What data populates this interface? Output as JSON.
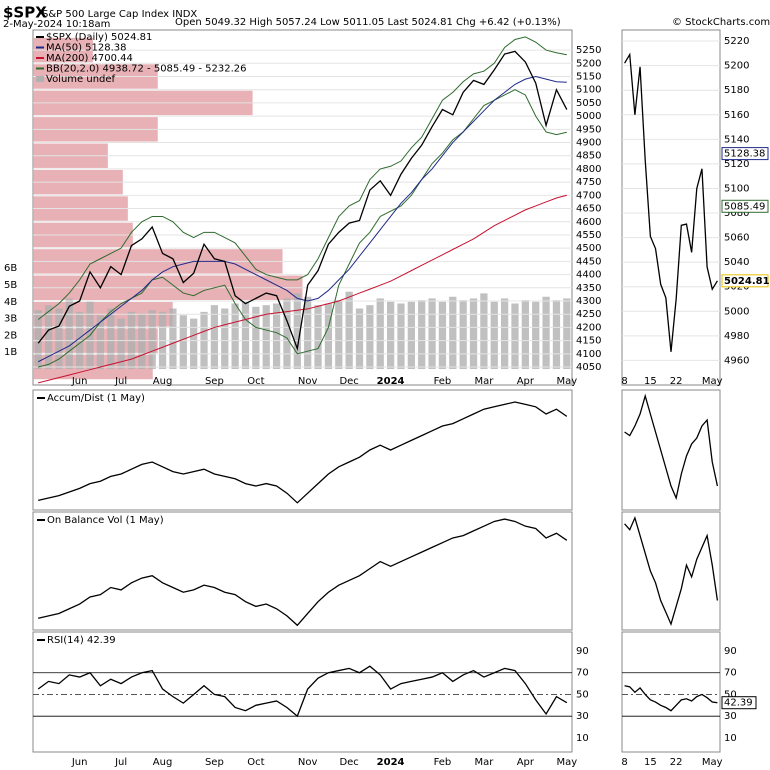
{
  "chart_data": [
    {
      "type": "line",
      "title": "$SPX",
      "subtitle": "S&P 500 Large Cap Index INDX",
      "date": "2-May-2024 10:18am",
      "quote": "Open 5049.32 High 5057.24 Low 5011.05 Last 5024.81 Chg +6.42 (+0.13%)",
      "source": "© StockCharts.com",
      "categories": [
        null,
        null,
        null,
        null,
        "Jun",
        null,
        null,
        null,
        "Jul",
        null,
        null,
        null,
        "Aug",
        null,
        null,
        null,
        null,
        "Sep",
        null,
        null,
        null,
        "Oct",
        null,
        null,
        null,
        null,
        "Nov",
        null,
        null,
        null,
        "Dec",
        null,
        null,
        null,
        "2024",
        null,
        null,
        null,
        null,
        "Feb",
        null,
        null,
        null,
        "Mar",
        null,
        null,
        null,
        "Apr",
        null,
        null,
        null,
        "May"
      ],
      "series": [
        {
          "name": "$SPX (Daily) 5024.81",
          "color": "#000000",
          "values": [
            4140,
            4190,
            4205,
            4280,
            4300,
            4410,
            4350,
            4430,
            4400,
            4510,
            4535,
            4580,
            4480,
            4460,
            4370,
            4405,
            4515,
            4460,
            4450,
            4320,
            4290,
            4310,
            4330,
            4320,
            4225,
            4120,
            4360,
            4415,
            4515,
            4560,
            4595,
            4605,
            4720,
            4755,
            4700,
            4780,
            4840,
            4890,
            4960,
            5025,
            5005,
            5090,
            5135,
            5120,
            5175,
            5235,
            5245,
            5205,
            5125,
            4965,
            5100,
            5024.81
          ]
        },
        {
          "name": "MA(50) 5128.38",
          "color": "#1f2a8a",
          "values": [
            4070,
            4090,
            4110,
            4130,
            4160,
            4190,
            4220,
            4250,
            4280,
            4310,
            4340,
            4380,
            4410,
            4430,
            4440,
            4450,
            4450,
            4450,
            4450,
            4440,
            4420,
            4400,
            4380,
            4360,
            4340,
            4310,
            4300,
            4310,
            4340,
            4380,
            4420,
            4470,
            4520,
            4570,
            4620,
            4670,
            4710,
            4760,
            4800,
            4850,
            4900,
            4940,
            4980,
            5020,
            5060,
            5090,
            5120,
            5140,
            5150,
            5140,
            5130,
            5128.38
          ]
        },
        {
          "name": "MA(200) 4700.44",
          "color": "#c8102e",
          "values": [
            3990,
            4000,
            4010,
            4020,
            4030,
            4040,
            4050,
            4060,
            4070,
            4080,
            4095,
            4110,
            4125,
            4140,
            4155,
            4170,
            4185,
            4200,
            4210,
            4220,
            4230,
            4240,
            4250,
            4255,
            4260,
            4265,
            4270,
            4280,
            4290,
            4300,
            4315,
            4330,
            4345,
            4360,
            4375,
            4395,
            4415,
            4435,
            4455,
            4475,
            4495,
            4515,
            4535,
            4560,
            4585,
            4605,
            4625,
            4645,
            4660,
            4675,
            4690,
            4700.44
          ]
        },
        {
          "name": "BB(20,2.0) 4938.72 - 5085.49 - 5232.26",
          "color": "#2f6b2f",
          "values": [
            4230,
            4260,
            4290,
            4330,
            4380,
            4440,
            4460,
            4480,
            4500,
            4560,
            4600,
            4620,
            4620,
            4600,
            4560,
            4540,
            4560,
            4560,
            4540,
            4520,
            4470,
            4420,
            4400,
            4390,
            4380,
            4380,
            4400,
            4460,
            4540,
            4620,
            4660,
            4680,
            4760,
            4800,
            4810,
            4830,
            4880,
            4920,
            4990,
            5060,
            5090,
            5130,
            5160,
            5170,
            5200,
            5260,
            5290,
            5300,
            5280,
            5250,
            5240,
            5232.26
          ],
          "lower": [
            4050,
            4060,
            4080,
            4110,
            4140,
            4170,
            4220,
            4260,
            4290,
            4310,
            4330,
            4380,
            4390,
            4360,
            4330,
            4320,
            4340,
            4350,
            4360,
            4290,
            4230,
            4200,
            4190,
            4180,
            4160,
            4100,
            4110,
            4120,
            4200,
            4360,
            4440,
            4520,
            4560,
            4620,
            4640,
            4660,
            4700,
            4760,
            4820,
            4860,
            4910,
            4940,
            4990,
            5040,
            5060,
            5080,
            5100,
            5080,
            5000,
            4940,
            4930,
            4938.72
          ]
        }
      ],
      "volume": {
        "name": "Volume undef",
        "color": "#b0b0b0",
        "values": [
          3.5,
          3.8,
          3.6,
          4.2,
          3.4,
          4.0,
          3.2,
          3.6,
          3.0,
          3.4,
          3.3,
          3.5,
          3.4,
          3.6,
          3.2,
          3.0,
          3.4,
          3.8,
          3.6,
          3.9,
          4.0,
          3.7,
          3.8,
          3.9,
          4.2,
          4.5,
          4.3,
          3.8,
          3.9,
          4.1,
          4.6,
          3.6,
          3.8,
          4.2,
          4.0,
          3.9,
          4.0,
          4.1,
          4.2,
          4.0,
          4.3,
          4.1,
          4.2,
          4.5,
          4.0,
          4.2,
          3.9,
          4.1,
          4.0,
          4.3,
          4.1,
          4.2
        ],
        "ylim": [
          -0.95,
          20.17
        ],
        "yticks": [
          {
            "value": 1,
            "label": "1B"
          },
          {
            "value": 2,
            "label": "2B"
          },
          {
            "value": 3,
            "label": "3B"
          },
          {
            "value": 4,
            "label": "4B"
          },
          {
            "value": 5,
            "label": "5B"
          },
          {
            "value": 6,
            "label": "6B"
          }
        ]
      },
      "volume_by_price": {
        "color": "#e3a3a8",
        "bins": [
          4000,
          4100,
          4200,
          4300,
          4400,
          4500,
          4600,
          4700,
          4800,
          4900,
          5000,
          5100,
          5200,
          5300
        ],
        "values": [
          120,
          125,
          140,
          270,
          250,
          100,
          95,
          90,
          75,
          125,
          220,
          125,
          60
        ],
        "xlim": [
          0,
          540
        ]
      },
      "ylim": [
        3982,
        5326
      ],
      "yticks": [
        4050,
        4100,
        4150,
        4200,
        4250,
        4300,
        4350,
        4400,
        4450,
        4500,
        4550,
        4600,
        4650,
        4700,
        4750,
        4800,
        4850,
        4900,
        4950,
        5000,
        5050,
        5100,
        5150,
        5200,
        5250
      ]
    },
    {
      "type": "line",
      "categories": [
        "8",
        null,
        null,
        null,
        null,
        "15",
        null,
        null,
        null,
        null,
        "22",
        null,
        null,
        null,
        null,
        null,
        null,
        "May",
        null
      ],
      "values": [
        5202,
        5209,
        5160,
        5199,
        5123,
        5061,
        5051,
        5022,
        5011,
        4967,
        5010,
        5070,
        5071,
        5048,
        5100,
        5116,
        5036,
        5018,
        5024.81
      ],
      "color": "#000000",
      "tags": [
        5128.38,
        5085.49,
        5024.81
      ],
      "tag_colors": [
        "#1f2a8a",
        "#2f6b2f",
        "#e6c200"
      ],
      "ylim": [
        4940,
        5229
      ],
      "yticks": [
        4960,
        4980,
        5000,
        5020,
        5040,
        5060,
        5080,
        5100,
        5120,
        5140,
        5160,
        5180,
        5200,
        5220
      ]
    },
    {
      "type": "line",
      "title": "Accum/Dist (1 May)",
      "color": "#000000",
      "ylim": [
        0,
        100
      ],
      "values": [
        8,
        10,
        12,
        15,
        18,
        22,
        24,
        28,
        30,
        34,
        38,
        40,
        36,
        32,
        30,
        32,
        34,
        30,
        28,
        26,
        22,
        20,
        22,
        20,
        14,
        6,
        14,
        22,
        30,
        36,
        40,
        44,
        50,
        54,
        50,
        54,
        58,
        62,
        66,
        70,
        72,
        76,
        80,
        84,
        86,
        88,
        90,
        88,
        86,
        80,
        84,
        78
      ]
    },
    {
      "type": "line",
      "color": "#000000",
      "ylim": [
        0,
        100
      ],
      "values": [
        65,
        62,
        70,
        80,
        95,
        80,
        65,
        50,
        35,
        20,
        10,
        30,
        45,
        55,
        60,
        70,
        75,
        40,
        20
      ]
    },
    {
      "type": "line",
      "title": "On Balance Vol (1 May)",
      "color": "#000000",
      "ylim": [
        0,
        100
      ],
      "values": [
        10,
        12,
        14,
        18,
        22,
        28,
        30,
        36,
        34,
        40,
        44,
        46,
        40,
        36,
        32,
        34,
        38,
        36,
        32,
        30,
        24,
        20,
        22,
        18,
        12,
        4,
        14,
        24,
        32,
        38,
        42,
        46,
        52,
        58,
        54,
        58,
        62,
        66,
        70,
        74,
        78,
        80,
        84,
        88,
        92,
        94,
        92,
        88,
        86,
        78,
        82,
        76
      ]
    },
    {
      "type": "line",
      "color": "#000000",
      "ylim": [
        0,
        100
      ],
      "values": [
        90,
        85,
        95,
        80,
        65,
        50,
        40,
        25,
        15,
        5,
        20,
        35,
        55,
        45,
        60,
        70,
        80,
        55,
        25
      ]
    },
    {
      "type": "line",
      "title": "RSI(14) 42.39",
      "color": "#000000",
      "ylim": [
        -3,
        107.5
      ],
      "yticks": [
        10,
        30,
        50,
        70,
        90
      ],
      "reference_lines": [
        30,
        70
      ],
      "midline": 50,
      "categories": [
        null,
        null,
        null,
        null,
        "Jun",
        null,
        null,
        null,
        "Jul",
        null,
        null,
        null,
        "Aug",
        null,
        null,
        null,
        null,
        "Sep",
        null,
        null,
        null,
        "Oct",
        null,
        null,
        null,
        null,
        "Nov",
        null,
        null,
        null,
        "Dec",
        null,
        null,
        null,
        "2024",
        null,
        null,
        null,
        null,
        "Feb",
        null,
        null,
        null,
        "Mar",
        null,
        null,
        null,
        "Apr",
        null,
        null,
        null,
        "May"
      ],
      "values": [
        55,
        62,
        60,
        68,
        66,
        70,
        58,
        64,
        60,
        66,
        70,
        72,
        55,
        48,
        42,
        50,
        58,
        50,
        48,
        38,
        35,
        40,
        42,
        44,
        38,
        30,
        55,
        65,
        70,
        72,
        74,
        70,
        76,
        68,
        55,
        60,
        62,
        64,
        66,
        70,
        62,
        68,
        72,
        66,
        70,
        74,
        72,
        60,
        45,
        32,
        48,
        42.39
      ]
    },
    {
      "type": "line",
      "color": "#000000",
      "ylim": [
        -3,
        107.5
      ],
      "yticks": [
        10,
        30,
        50,
        70,
        90
      ],
      "reference_lines": [
        30,
        70
      ],
      "midline": 50,
      "categories": [
        "8",
        null,
        null,
        null,
        null,
        "15",
        null,
        null,
        null,
        null,
        "22",
        null,
        null,
        null,
        null,
        null,
        null,
        "May",
        null
      ],
      "values": [
        58,
        57,
        52,
        56,
        50,
        45,
        43,
        40,
        38,
        35,
        40,
        45,
        46,
        44,
        48,
        50,
        47,
        43,
        42.39
      ]
    }
  ]
}
